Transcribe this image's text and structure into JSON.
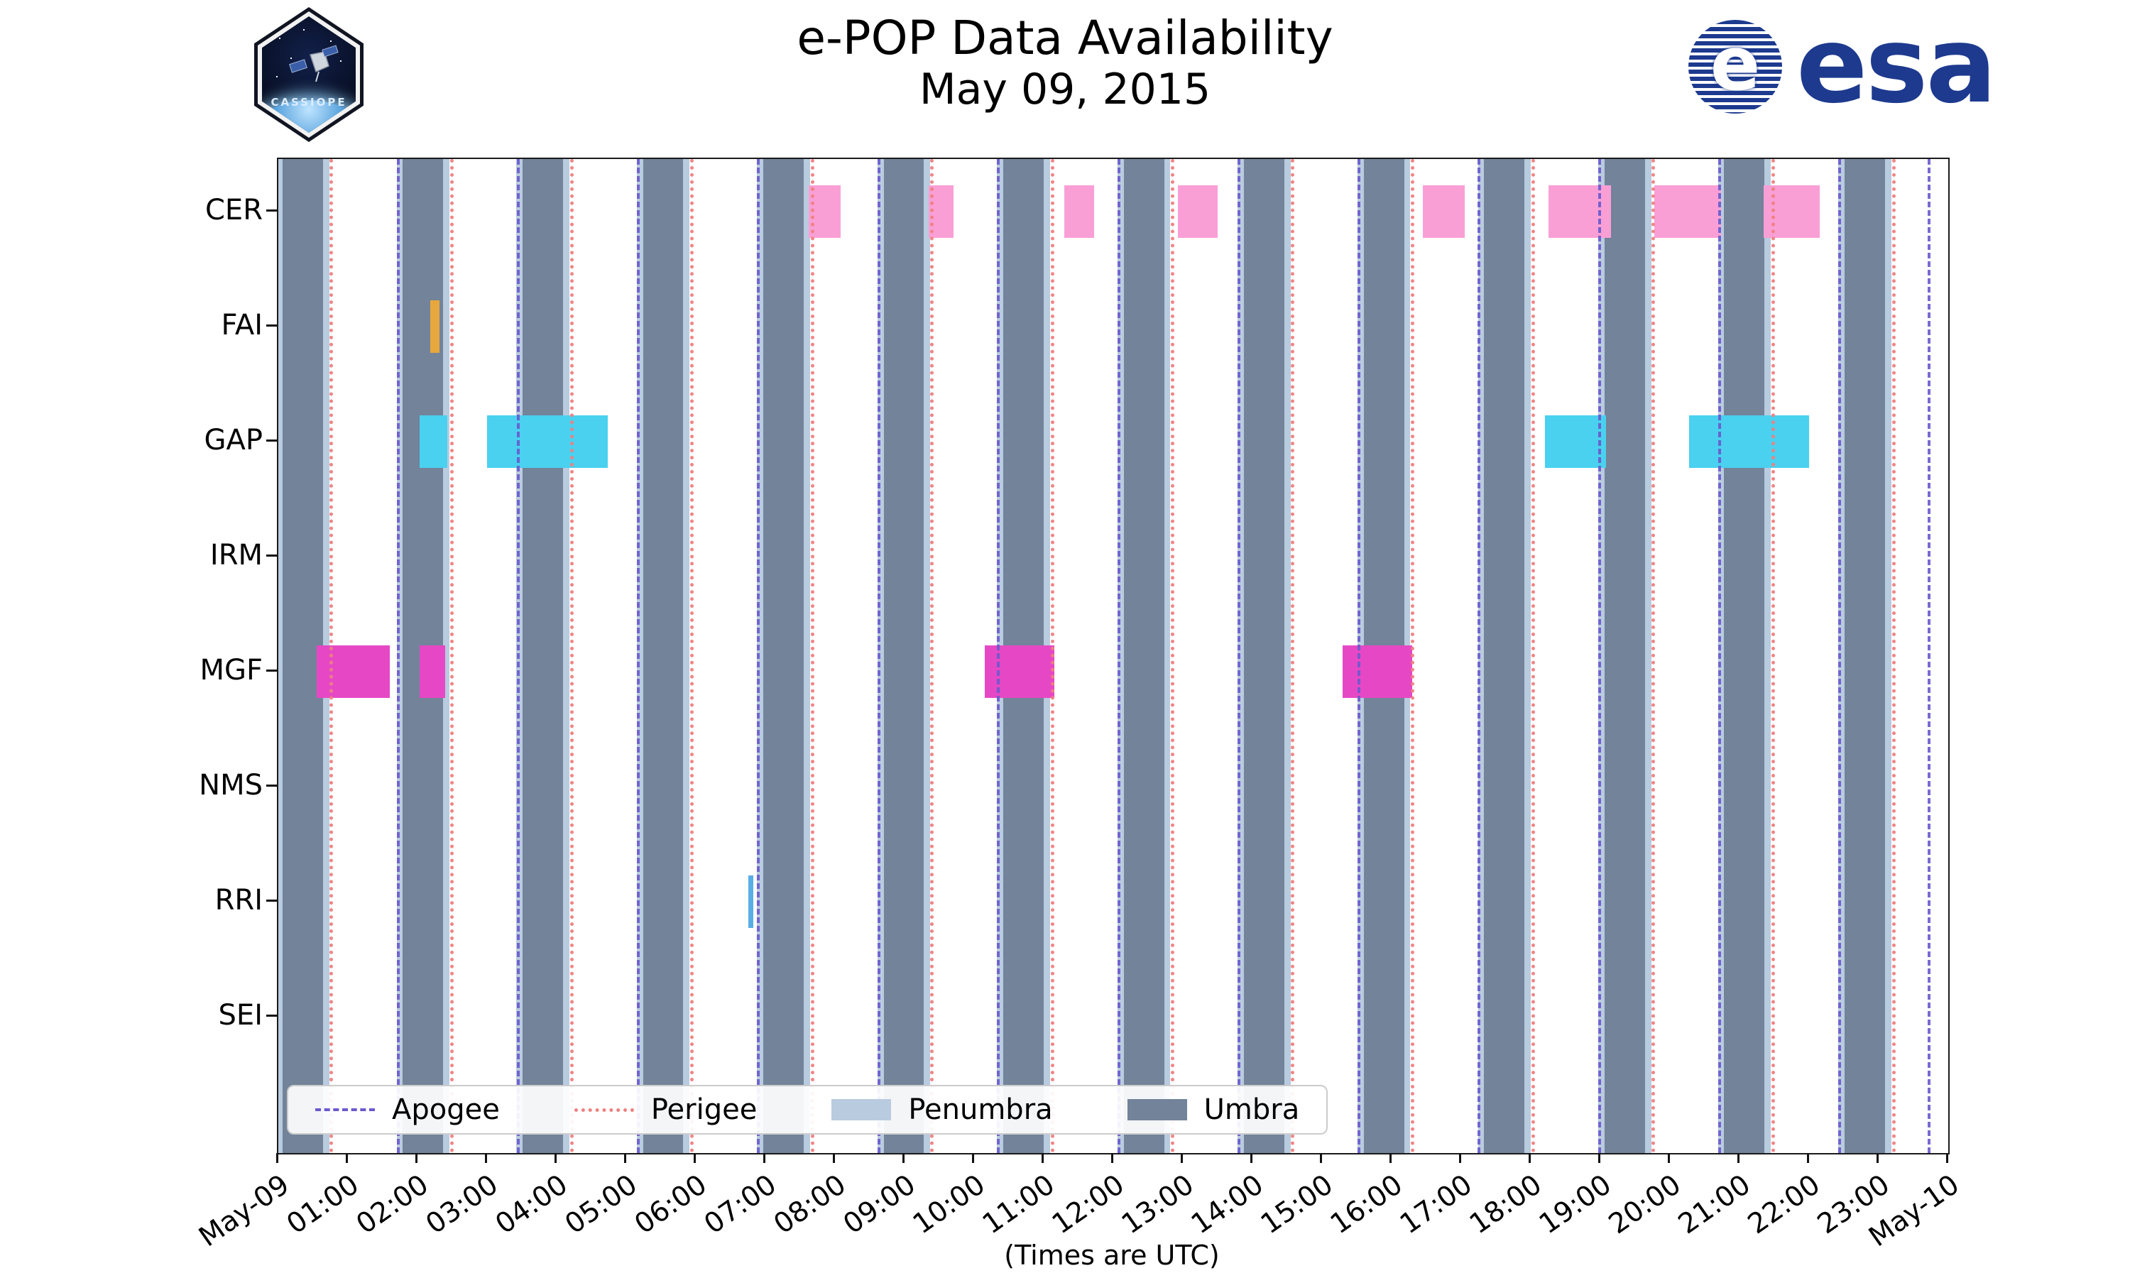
{
  "header": {
    "title": "e-POP Data Availability",
    "date": "May 09, 2015",
    "cassiope_label": "CASSIOPE",
    "esa_wordmark": "esa",
    "esa_emblem_letter": "e"
  },
  "chart_data": {
    "type": "bar",
    "subtype": "instrument-availability-timeline",
    "title": "e-POP Data Availability",
    "subtitle": "May 09, 2015",
    "xlabel": "(Times are UTC)",
    "xlim_hours": [
      0,
      24
    ],
    "x_tick_hours": [
      0,
      1,
      2,
      3,
      4,
      5,
      6,
      7,
      8,
      9,
      10,
      11,
      12,
      13,
      14,
      15,
      16,
      17,
      18,
      19,
      20,
      21,
      22,
      23,
      24
    ],
    "x_tick_labels": [
      "May-09",
      "01:00",
      "02:00",
      "03:00",
      "04:00",
      "05:00",
      "06:00",
      "07:00",
      "08:00",
      "09:00",
      "10:00",
      "11:00",
      "12:00",
      "13:00",
      "14:00",
      "15:00",
      "16:00",
      "17:00",
      "18:00",
      "19:00",
      "20:00",
      "21:00",
      "22:00",
      "23:00",
      "May-10"
    ],
    "rows": [
      "CER",
      "FAI",
      "GAP",
      "IRM",
      "MGF",
      "NMS",
      "RRI",
      "SEI"
    ],
    "availability_hours_utc": {
      "CER": [
        [
          7.62,
          8.08
        ],
        [
          9.35,
          9.7
        ],
        [
          11.3,
          11.72
        ],
        [
          12.93,
          13.5
        ],
        [
          16.45,
          17.05
        ],
        [
          18.25,
          19.15
        ],
        [
          19.78,
          20.73
        ],
        [
          21.35,
          22.15
        ]
      ],
      "FAI": [
        [
          2.18,
          2.32
        ]
      ],
      "GAP": [
        [
          2.03,
          2.43
        ],
        [
          3.0,
          4.73
        ],
        [
          18.2,
          19.08
        ],
        [
          20.28,
          22.0
        ]
      ],
      "IRM": [],
      "MGF": [
        [
          0.55,
          1.6
        ],
        [
          2.03,
          2.4
        ],
        [
          10.15,
          11.15
        ],
        [
          15.3,
          16.3
        ]
      ],
      "NMS": [],
      "RRI": [
        [
          6.75,
          6.83
        ]
      ],
      "SEI": []
    },
    "orbit_events": {
      "umbra_intervals_hours": [
        [
          0.06,
          0.64
        ],
        [
          1.79,
          2.37
        ],
        [
          3.51,
          4.09
        ],
        [
          5.24,
          5.82
        ],
        [
          6.97,
          7.55
        ],
        [
          8.7,
          9.28
        ],
        [
          10.42,
          11.0
        ],
        [
          12.15,
          12.73
        ],
        [
          13.88,
          14.46
        ],
        [
          15.6,
          16.18
        ],
        [
          17.33,
          17.91
        ],
        [
          19.06,
          19.64
        ],
        [
          20.78,
          21.36
        ],
        [
          22.51,
          23.09
        ]
      ],
      "penumbra_pad_hours": 0.09,
      "apogee_hours": [
        1.72,
        3.45,
        5.17,
        6.9,
        8.63,
        10.35,
        12.08,
        13.81,
        15.53,
        17.26,
        18.99,
        20.71,
        22.44,
        23.72
      ],
      "perigee_hours": [
        0.76,
        2.49,
        4.21,
        5.94,
        7.67,
        9.39,
        11.12,
        12.85,
        14.57,
        16.3,
        18.03,
        19.75,
        21.48,
        23.21
      ]
    },
    "legend": [
      {
        "label": "Apogee",
        "style": "dashed-line"
      },
      {
        "label": "Perigee",
        "style": "dotted-line"
      },
      {
        "label": "Penumbra",
        "style": "patch"
      },
      {
        "label": "Umbra",
        "style": "patch"
      }
    ],
    "colors": {
      "CER": "#f99fd6",
      "FAI": "#e8a73c",
      "GAP": "#49d1ef",
      "MGF": "#e648c5",
      "RRI": "#58aee8",
      "umbra": "#72839a",
      "penumbra": "#b9cbdf",
      "apogee": "#6a5acd",
      "perigee": "#f08080",
      "esa_blue": "#1d3a8f"
    }
  }
}
